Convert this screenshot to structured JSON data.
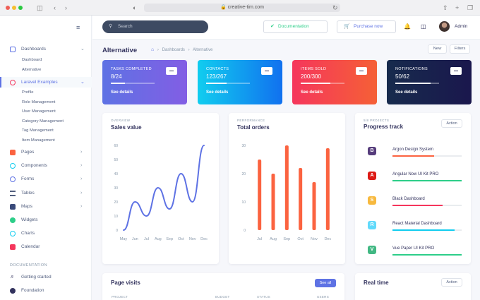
{
  "browser": {
    "url": "creative-tim.com"
  },
  "sidebar": {
    "items": [
      {
        "label": "Dashboards",
        "icon": "dashboard-icon",
        "color": "#5e72e4",
        "expanded": true
      },
      {
        "label": "Laravel Examples",
        "icon": "laravel-icon",
        "color": "#f5365c",
        "expanded": true
      },
      {
        "label": "Pages",
        "icon": "pages-icon",
        "color": "#fb6340"
      },
      {
        "label": "Components",
        "icon": "components-icon",
        "color": "#11cdef"
      },
      {
        "label": "Forms",
        "icon": "forms-icon",
        "color": "#5e72e4"
      },
      {
        "label": "Tables",
        "icon": "tables-icon",
        "color": "#525f7f"
      },
      {
        "label": "Maps",
        "icon": "map-icon",
        "color": "#172b4d"
      },
      {
        "label": "Widgets",
        "icon": "widgets-icon",
        "color": "#2dce89"
      },
      {
        "label": "Charts",
        "icon": "charts-icon",
        "color": "#11cdef"
      },
      {
        "label": "Calendar",
        "icon": "calendar-icon",
        "color": "#f5365c"
      }
    ],
    "dashboard_sub": [
      "Dashboard",
      "Alternative"
    ],
    "laravel_sub": [
      "Profile",
      "Role Management",
      "User Management",
      "Category Management",
      "Tag Management",
      "Item Management"
    ],
    "doc_heading": "DOCUMENTATION",
    "doc_items": [
      {
        "label": "Getting started",
        "icon": "rocket-icon"
      },
      {
        "label": "Foundation",
        "icon": "foundation-icon"
      }
    ]
  },
  "topbar": {
    "search_placeholder": "Search",
    "documentation_label": "Documentation",
    "purchase_label": "Purchase now",
    "user_name": "Admin"
  },
  "header": {
    "title": "Alternative",
    "breadcrumb": [
      "Dashboards",
      "Alternative"
    ],
    "new_label": "New",
    "filters_label": "Filters"
  },
  "stats": [
    {
      "title": "TASKS COMPLETED",
      "value": "8/24",
      "link": "See details",
      "progress": 0.33,
      "from": "#5e72e4",
      "to": "#825ee4"
    },
    {
      "title": "CONTACTS",
      "value": "123/267",
      "link": "See details",
      "progress": 0.46,
      "from": "#11cdef",
      "to": "#1171ef"
    },
    {
      "title": "ITEMS SOLD",
      "value": "200/300",
      "link": "See details",
      "progress": 0.67,
      "from": "#f5365c",
      "to": "#f56036"
    },
    {
      "title": "NOTIFICATIONS",
      "value": "50/62",
      "link": "See details",
      "progress": 0.8,
      "from": "#172b4d",
      "to": "#1a174d"
    }
  ],
  "sales": {
    "overline": "OVERVIEW",
    "title": "Sales value"
  },
  "orders": {
    "overline": "PERFORMANCE",
    "title": "Total orders"
  },
  "progress_track": {
    "overline": "5/8 PROJECTS",
    "title": "Progress track",
    "action_label": "Action",
    "items": [
      {
        "name": "Argon Design System",
        "letter": "B",
        "logo_color": "#563d7c",
        "progress": 0.6,
        "bar_color": "#fb6340"
      },
      {
        "name": "Angular Now UI Kit PRO",
        "letter": "A",
        "logo_color": "#dd1b16",
        "progress": 1.0,
        "bar_color": "#2dce89"
      },
      {
        "name": "Black Dashboard",
        "letter": "S",
        "logo_color": "#f7b93e",
        "progress": 0.72,
        "bar_color": "#f5365c"
      },
      {
        "name": "React Material Dashboard",
        "letter": "R",
        "logo_color": "#61dafb",
        "progress": 0.9,
        "bar_color": "#11cdef"
      },
      {
        "name": "Vue Paper UI Kit PRO",
        "letter": "V",
        "logo_color": "#41b883",
        "progress": 1.0,
        "bar_color": "#2dce89"
      }
    ]
  },
  "page_visits": {
    "title": "Page visits",
    "see_all_label": "See all",
    "columns": [
      "PROJECT",
      "BUDGET",
      "STATUS",
      "USERS"
    ]
  },
  "real_time": {
    "title": "Real time",
    "action_label": "Action"
  },
  "chart_data": [
    {
      "type": "line",
      "title": "Sales value",
      "categories": [
        "May",
        "Jun",
        "Jul",
        "Aug",
        "Sep",
        "Oct",
        "Nov",
        "Dec"
      ],
      "values": [
        0,
        20,
        10,
        30,
        15,
        40,
        20,
        60
      ],
      "ylim": [
        0,
        60
      ],
      "yticks": [
        0,
        10,
        20,
        30,
        40,
        50,
        60
      ],
      "color": "#5e72e4"
    },
    {
      "type": "bar",
      "title": "Total orders",
      "categories": [
        "Jul",
        "Aug",
        "Sep",
        "Oct",
        "Nov",
        "Dec"
      ],
      "values": [
        25,
        20,
        30,
        22,
        17,
        29
      ],
      "ylim": [
        0,
        30
      ],
      "yticks": [
        0,
        10,
        20,
        30
      ],
      "color": "#fb6340"
    }
  ]
}
